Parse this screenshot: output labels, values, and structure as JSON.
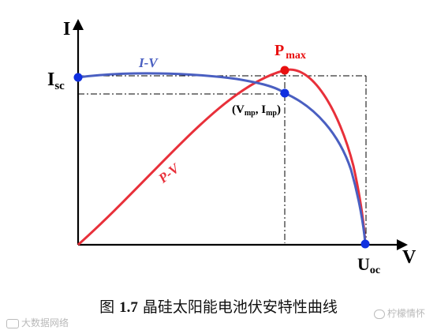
{
  "diagram": {
    "axis_y_label": "I",
    "axis_x_label": "V",
    "isc_main": "I",
    "isc_sub": "sc",
    "uoc_main": "U",
    "uoc_sub": "oc",
    "iv_label": "I-V",
    "pv_label": "P-V",
    "pmax_main": "P",
    "pmax_sub": "max",
    "mpp_open": "(V",
    "mpp_sub1": "mp",
    "mpp_mid": ", I",
    "mpp_sub2": "mp",
    "mpp_close": ")",
    "colors": {
      "iv_curve": "#4a5fc1",
      "pv_curve": "#e8303a",
      "axes": "#000000",
      "points_blue": "#1030e0",
      "point_red": "#e81010"
    }
  },
  "caption": {
    "prefix": "图",
    "number": "1.7",
    "text": "晶硅太阳能电池伏安特性曲线"
  },
  "watermark": {
    "left": "大数据网络",
    "right": "柠檬情怀"
  }
}
